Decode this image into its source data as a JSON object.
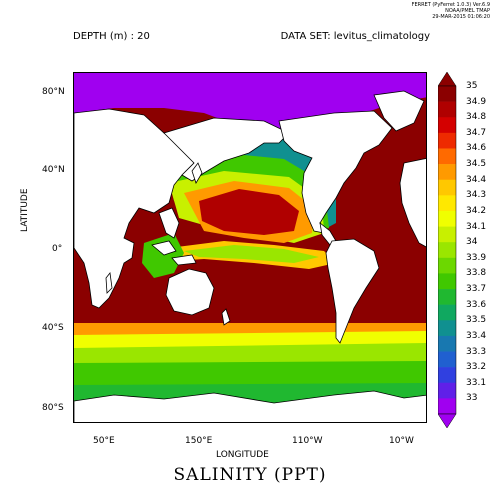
{
  "header": {
    "ferret_line": "FERRET (PyFerret 1.0.3) Ver.6.9",
    "org_line": "NOAA/PMEL TMAP",
    "date_line": "29-MAR-2015 01:06:20"
  },
  "depth_label": "DEPTH (m) : 20",
  "dataset_label": "DATA SET: levitus_climatology",
  "title": "SALINITY (PPT)",
  "axes": {
    "x_title": "LONGITUDE",
    "y_title": "LATITUDE",
    "lat_ticks": [
      "80°N",
      "40°N",
      "0°",
      "40°S",
      "80°S"
    ],
    "lon_ticks": [
      "50°E",
      "150°E",
      "110°W",
      "10°W"
    ]
  },
  "colorbar": {
    "labels": [
      "35",
      "34.9",
      "34.8",
      "34.7",
      "34.6",
      "34.5",
      "34.4",
      "34.3",
      "34.2",
      "34.1",
      "34",
      "33.9",
      "33.8",
      "33.7",
      "33.6",
      "33.5",
      "33.4",
      "33.3",
      "33.2",
      "33.1",
      "33"
    ],
    "colors": [
      "#8b0000",
      "#b00000",
      "#d40000",
      "#ee2a00",
      "#ff6a00",
      "#ff9a00",
      "#ffc800",
      "#ffe800",
      "#f0ff00",
      "#c8f000",
      "#9ae600",
      "#6cd800",
      "#40c800",
      "#20b830",
      "#10a860",
      "#109090",
      "#1878b0",
      "#2060d0",
      "#3040e0",
      "#6020e8",
      "#a000f0"
    ],
    "over_color": "#8b0000",
    "under_color": "#a000f0"
  },
  "colors": {
    "land": "#ffffff",
    "coastline": "#000000"
  }
}
